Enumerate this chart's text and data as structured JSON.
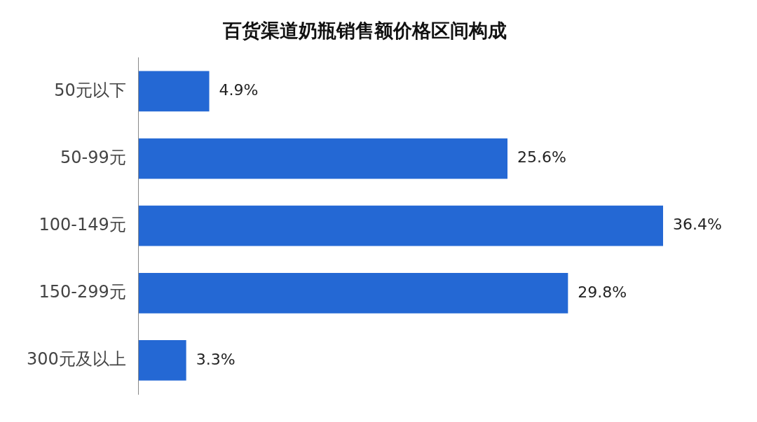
{
  "chart_data": {
    "type": "bar",
    "orientation": "horizontal",
    "title": "百货渠道奶瓶销售额价格区间构成",
    "categories": [
      "50元以下",
      "50-99元",
      "100-149元",
      "150-299元",
      "300元及以上"
    ],
    "values": [
      4.9,
      25.6,
      36.4,
      29.8,
      3.3
    ],
    "value_labels": [
      "4.9%",
      "25.6%",
      "36.4%",
      "29.8%",
      "3.3%"
    ],
    "color": "#2468d4",
    "grid": false,
    "legend": false
  }
}
